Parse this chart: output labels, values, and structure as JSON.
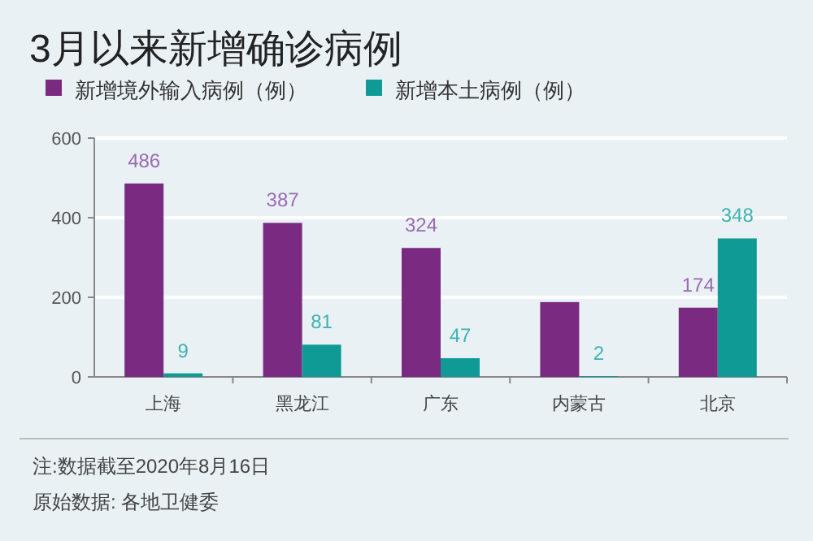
{
  "chart_data": {
    "type": "bar",
    "title": "3月以来新增确诊病例",
    "categories": [
      "上海",
      "黑龙江",
      "广东",
      "内蒙古",
      "北京"
    ],
    "series": [
      {
        "name": "新增境外输入病例（例）",
        "color": "#7b2a82",
        "values": [
          486,
          387,
          324,
          188,
          174
        ],
        "value_labels": [
          "486",
          "387",
          "324",
          null,
          "174"
        ]
      },
      {
        "name": "新增本土病例（例）",
        "color": "#0f9a96",
        "values": [
          9,
          81,
          47,
          2,
          348
        ],
        "value_labels": [
          "9",
          "81",
          "47",
          "2",
          "348"
        ]
      }
    ],
    "ylim": [
      0,
      600
    ],
    "yticks": [
      0,
      200,
      400,
      600
    ],
    "grid": "y",
    "legend": "top left",
    "annotations": [
      "注:数据截至2020年8月16日",
      "原始数据: 各地卫健委"
    ]
  }
}
